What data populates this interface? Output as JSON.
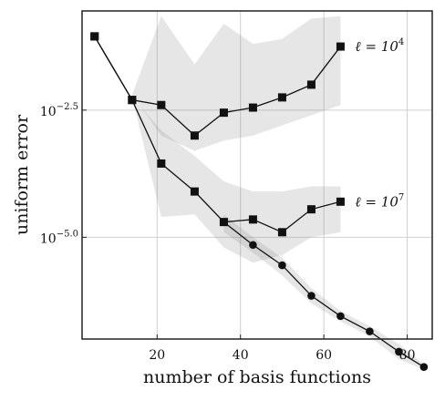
{
  "chart_data": {
    "type": "line",
    "xlabel": "number of basis functions",
    "ylabel": "uniform error",
    "xlim": [
      2,
      86
    ],
    "ylim": [
      -7.0,
      -0.55
    ],
    "y_scale": "log10",
    "grid": true,
    "x_ticks": [
      20,
      40,
      60,
      80
    ],
    "y_ticks": [
      {
        "value": -2.5,
        "label": "10^{-2.5}"
      },
      {
        "value": -5.0,
        "label": "10^{-5.0}"
      }
    ],
    "series": [
      {
        "name": "ℓ = 10^4",
        "marker": "square",
        "x": [
          5,
          14,
          21,
          29,
          36,
          43,
          50,
          57,
          64
        ],
        "y": [
          -1.05,
          -2.3,
          -2.4,
          -3.0,
          -2.55,
          -2.45,
          -2.25,
          -2.0,
          -1.25
        ],
        "band_low": [
          -1.05,
          -2.2,
          -3.0,
          -3.3,
          -3.1,
          -3.0,
          -2.8,
          -2.6,
          -2.4
        ],
        "band_high": [
          -1.05,
          -2.2,
          -0.65,
          -1.6,
          -0.8,
          -1.2,
          -1.1,
          -0.7,
          -0.65
        ],
        "label": {
          "base": "ℓ = 10",
          "exp": "4"
        }
      },
      {
        "name": "ℓ = 10^7",
        "marker": "square",
        "x": [
          5,
          14,
          21,
          29,
          36,
          43,
          50,
          57,
          64
        ],
        "y": [
          -1.05,
          -2.3,
          -3.55,
          -4.1,
          -4.7,
          -4.65,
          -4.9,
          -4.45,
          -4.3
        ],
        "band_low": [
          -1.05,
          -2.25,
          -4.6,
          -4.55,
          -5.2,
          -5.5,
          -5.35,
          -5.0,
          -4.9
        ],
        "band_high": [
          -1.05,
          -2.25,
          -2.9,
          -3.4,
          -3.9,
          -4.1,
          -4.1,
          -4.0,
          -4.0
        ],
        "label": {
          "base": "ℓ = 10",
          "exp": "7"
        }
      },
      {
        "name": "",
        "marker": "circle",
        "x": [
          36,
          43,
          50,
          57,
          64,
          71,
          78,
          84
        ],
        "y": [
          -4.7,
          -5.15,
          -5.55,
          -6.15,
          -6.55,
          -6.85,
          -7.25,
          -7.55
        ],
        "band_low": [
          -4.9,
          -5.3,
          -5.75,
          -6.3,
          -6.65,
          -6.95,
          -7.4,
          -7.6
        ],
        "band_high": [
          -4.55,
          -5.0,
          -5.4,
          -6.0,
          -6.45,
          -6.75,
          -7.1,
          -7.5
        ]
      }
    ]
  }
}
